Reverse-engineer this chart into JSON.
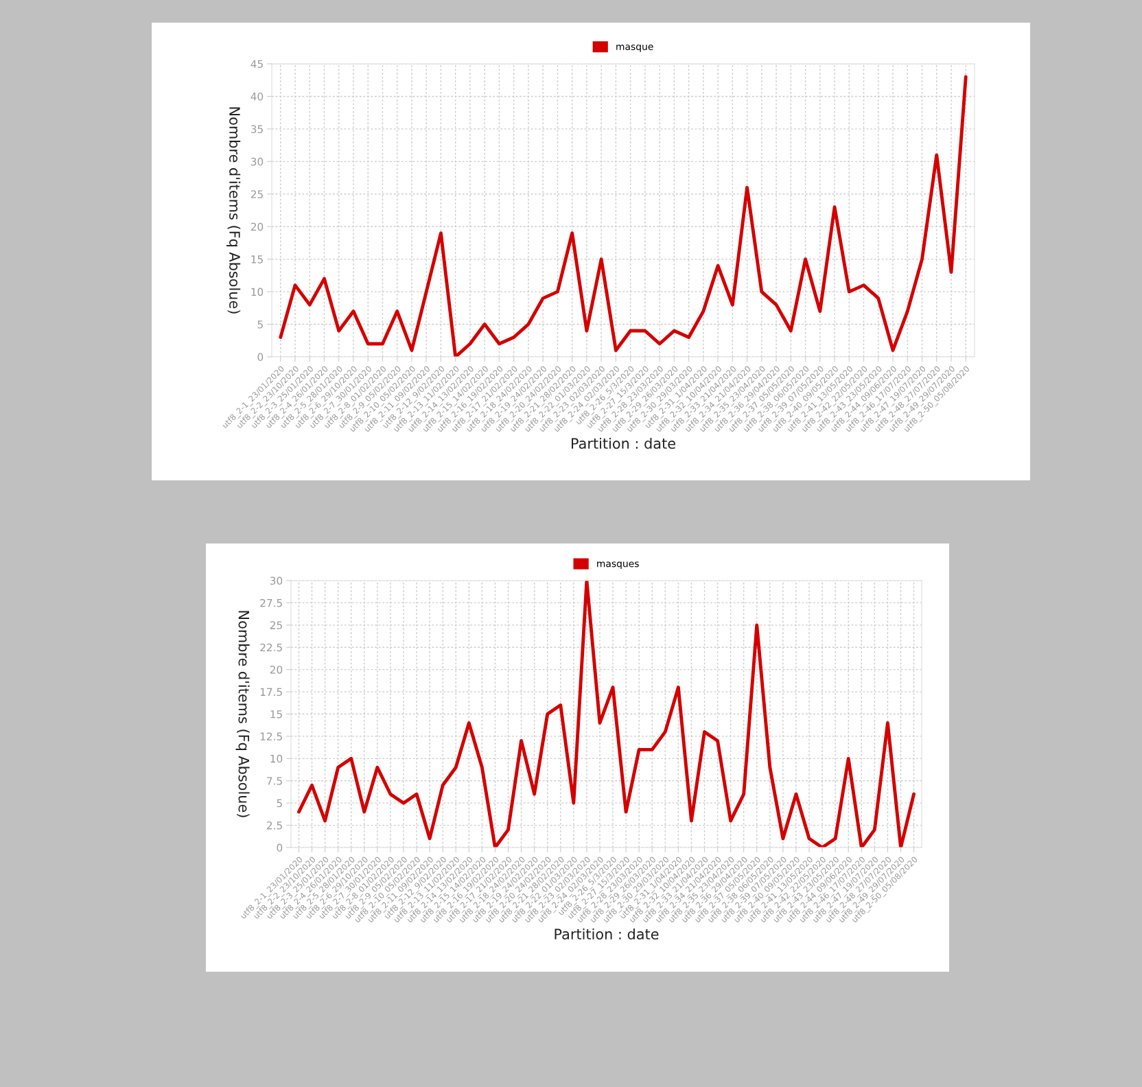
{
  "chart_data": [
    {
      "type": "line",
      "xlabel": "Partition : date",
      "ylabel": "Nombre d'items (Fq Absolue)",
      "legend": "top",
      "grid": true,
      "categories": [
        "utf8_2-1_23/01/2020",
        "utf8_2-2_23/10/2020",
        "utf8_2-3_25/01/2020",
        "utf8_2-4_26/01/2020",
        "utf8_2-5_28/01/2020",
        "utf8_2-6_29/10/2020",
        "utf8_2-7_30/01/2020",
        "utf8_2-8_01/02/2020",
        "utf8_2-9_05/02/2020",
        "utf8_2-10_05/02/2020",
        "utf8_2-11_09/02/2020",
        "utf8_2-12_9/02/2020",
        "utf8_2-13_11/02/2020",
        "utf8_2-14_13/02/2020",
        "utf8_2-15_14/02/2020",
        "utf8_2-16_19/02/2020",
        "utf8_2-17_21/02/2020",
        "utf8_2-18_24/02/2020",
        "utf8_2-19_24/02/2020",
        "utf8_2-20_24/02/2020",
        "utf8_2-21_28/02/2020",
        "utf8_2-22_01/03/2020",
        "utf8_2-23_02/03/2020",
        "utf8_2-24_02/03/2020",
        "utf8_2-26_5/3/2020",
        "utf8_2-27_15/3/2020",
        "utf8_2-28_23/03/2020",
        "utf8_2-29_26/03/2020",
        "utf8_2-30_29/03/2020",
        "utf8_2-31_1/04/2020",
        "utf8_2-32_10/04/2020",
        "utf8_2-33_21/04/2020",
        "utf8_2-34_21/04/2020",
        "utf8_2-35_23/04/2020",
        "utf8_2-36_29/04/2020",
        "utf8_2-37_05/05/2020",
        "utf8_2-38_06/05/2020",
        "utf8_2-39_07/05/2020",
        "utf8_2-40_09/05/2020",
        "utf8_2-41_13/05/2020",
        "utf8_2-42_22/05/2020",
        "utf8_2-43_23/05/2020",
        "utf8_2-44_09/06/2020",
        "utf8_2-46_17/07/2020",
        "utf8_2-47_19/07/2020",
        "utf8_2-48_27/07/2020",
        "utf8_2-49_29/07/2020",
        "utf8_2-50_05/08/2020"
      ],
      "ylim": [
        0,
        45
      ],
      "yticks": [
        0,
        5,
        10,
        15,
        20,
        25,
        30,
        35,
        40,
        45
      ],
      "series": [
        {
          "name": "masque",
          "color": "#d40000",
          "values": [
            3,
            11,
            8,
            12,
            4,
            7,
            2,
            2,
            7,
            1,
            10,
            19,
            0,
            2,
            5,
            2,
            3,
            5,
            9,
            10,
            19,
            4,
            15,
            1,
            4,
            4,
            2,
            4,
            3,
            7,
            14,
            8,
            26,
            10,
            8,
            4,
            15,
            7,
            23,
            10,
            11,
            9,
            1,
            7,
            15,
            31,
            13,
            43
          ]
        }
      ]
    },
    {
      "type": "line",
      "xlabel": "Partition : date",
      "ylabel": "Nombre d'items (Fq Absolue)",
      "legend": "top",
      "grid": true,
      "categories": [
        "utf8_2-1_23/01/2020",
        "utf8_2-2_23/10/2020",
        "utf8_2-3_25/01/2020",
        "utf8_2-4_26/01/2020",
        "utf8_2-5_28/01/2020",
        "utf8_2-6_29/10/2020",
        "utf8_2-7_30/01/2020",
        "utf8_2-8_01/02/2020",
        "utf8_2-9_05/02/2020",
        "utf8_2-10_05/02/2020",
        "utf8_2-11_09/02/2020",
        "utf8_2-12_9/02/2020",
        "utf8_2-13_11/02/2020",
        "utf8_2-14_13/02/2020",
        "utf8_2-15_14/02/2020",
        "utf8_2-16_19/02/2020",
        "utf8_2-17_21/02/2020",
        "utf8_2-18_24/02/2020",
        "utf8_2-19_24/02/2020",
        "utf8_2-20_24/02/2020",
        "utf8_2-21_28/02/2020",
        "utf8_2-22_01/03/2020",
        "utf8_2-23_02/03/2020",
        "utf8_2-24_02/03/2020",
        "utf8_2-26_5/3/2020",
        "utf8_2-27_15/3/2020",
        "utf8_2-28_23/03/2020",
        "utf8_2-29_26/03/2020",
        "utf8_2-30_29/03/2020",
        "utf8_2-31_1/04/2020",
        "utf8_2-32_10/04/2020",
        "utf8_2-33_21/04/2020",
        "utf8_2-34_21/04/2020",
        "utf8_2-35_23/04/2020",
        "utf8_2-36_29/04/2020",
        "utf8_2-37_05/05/2020",
        "utf8_2-38_06/05/2020",
        "utf8_2-39_07/05/2020",
        "utf8_2-40_09/05/2020",
        "utf8_2-41_13/05/2020",
        "utf8_2-42_22/05/2020",
        "utf8_2-43_23/05/2020",
        "utf8_2-44_09/06/2020",
        "utf8_2-46_17/07/2020",
        "utf8_2-47_19/07/2020",
        "utf8_2-48_27/07/2020",
        "utf8_2-49_29/07/2020",
        "utf8_2-50_05/08/2020"
      ],
      "ylim": [
        0,
        30
      ],
      "yticks": [
        0,
        2.5,
        5,
        7.5,
        10,
        12.5,
        15,
        17.5,
        20,
        22.5,
        25,
        27.5,
        30
      ],
      "series": [
        {
          "name": "masques",
          "color": "#d40000",
          "values": [
            4,
            7,
            3,
            9,
            10,
            4,
            9,
            6,
            5,
            6,
            1,
            7,
            9,
            14,
            9,
            0,
            2,
            12,
            6,
            15,
            16,
            5,
            30,
            14,
            18,
            4,
            11,
            11,
            13,
            18,
            3,
            13,
            12,
            3,
            6,
            25,
            9,
            1,
            6,
            1,
            0,
            1,
            10,
            0,
            2,
            14,
            0,
            6
          ]
        }
      ]
    }
  ]
}
